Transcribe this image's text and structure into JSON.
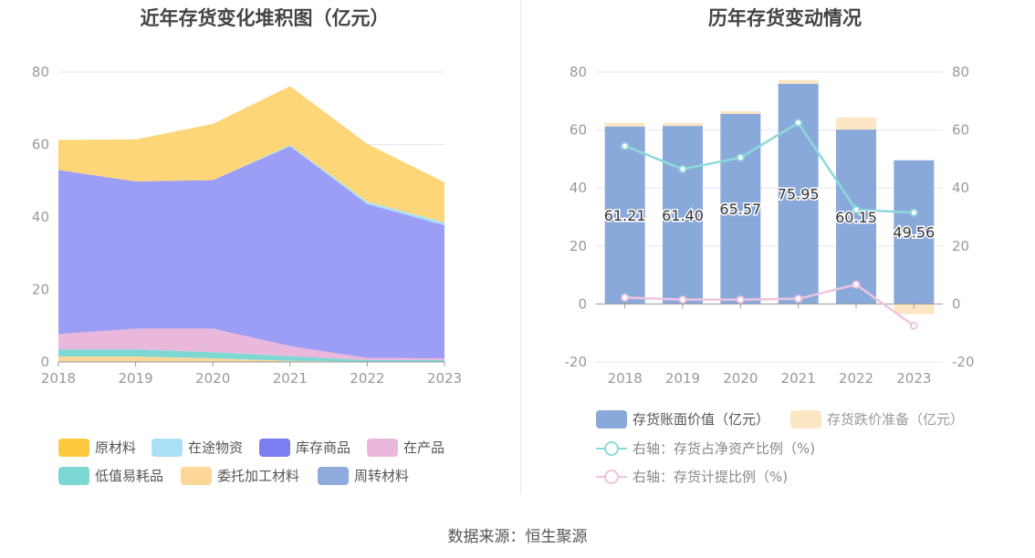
{
  "left_title": "近年存货变化堆积图（亿元）",
  "right_title": "历年存货变动情况",
  "source": "数据来源：恒生聚源",
  "left_legend": [
    {
      "label": "原材料",
      "color": "#fcc93f"
    },
    {
      "label": "在途物资",
      "color": "#a9dff7"
    },
    {
      "label": "库存商品",
      "color": "#7b7ef0"
    },
    {
      "label": "在产品",
      "color": "#e9b8dc"
    },
    {
      "label": "低值易耗品",
      "color": "#7dd8d4"
    },
    {
      "label": "委托加工材料",
      "color": "#fdd699"
    },
    {
      "label": "周转材料",
      "color": "#8faadd"
    }
  ],
  "right_legend": [
    {
      "label": "存货账面价值（亿元）",
      "color": "#8aa9db",
      "kind": "bar"
    },
    {
      "label": "存货跌价准备（亿元）",
      "color": "#fde6c3",
      "kind": "bar"
    },
    {
      "label": "右轴：存货占净资产比例（%)",
      "color": "#8ed9d9",
      "kind": "line"
    },
    {
      "label": "右轴：存货计提比例（%)",
      "color": "#efc4de",
      "kind": "line"
    }
  ],
  "chart_data": [
    {
      "type": "area",
      "title": "近年存货变化堆积图（亿元）",
      "categories": [
        "2018",
        "2019",
        "2020",
        "2021",
        "2022",
        "2023"
      ],
      "ylim": [
        0,
        80
      ],
      "yticks": [
        0,
        20,
        40,
        60,
        80
      ],
      "grid": true,
      "legend_position": "bottom",
      "stack_order_bottom_to_top": [
        "委托加工材料",
        "低值易耗品",
        "在产品",
        "库存商品",
        "在途物资",
        "原材料"
      ],
      "series": [
        {
          "name": "委托加工材料",
          "color": "#fdd699",
          "values": [
            1.5,
            1.5,
            1.0,
            0.3,
            0.1,
            0.1
          ]
        },
        {
          "name": "低值易耗品",
          "color": "#7dd8d4",
          "values": [
            2.0,
            2.0,
            1.7,
            1.3,
            0.4,
            0.4
          ]
        },
        {
          "name": "在产品",
          "color": "#e9b8dc",
          "values": [
            4.2,
            5.7,
            6.5,
            2.8,
            0.6,
            0.5
          ]
        },
        {
          "name": "库存商品",
          "color": "#9c9df5",
          "values": [
            45.3,
            40.6,
            41.0,
            55.1,
            42.5,
            36.7
          ]
        },
        {
          "name": "在途物资",
          "color": "#a9dff7",
          "values": [
            0.0,
            0.0,
            0.0,
            0.3,
            0.6,
            0.8
          ]
        },
        {
          "name": "原材料",
          "color": "#fdd679",
          "values": [
            8.3,
            11.6,
            15.5,
            16.3,
            16.0,
            11.1
          ]
        }
      ]
    },
    {
      "type": "bar",
      "title": "历年存货变动情况",
      "categories": [
        "2018",
        "2019",
        "2020",
        "2021",
        "2022",
        "2023"
      ],
      "ylim": [
        -20,
        80
      ],
      "yticks": [
        -20,
        0,
        20,
        40,
        60,
        80
      ],
      "y2lim": [
        -20,
        80
      ],
      "y2ticks": [
        -20,
        0,
        20,
        40,
        60,
        80
      ],
      "grid": true,
      "legend_position": "bottom",
      "series": [
        {
          "name": "存货账面价值（亿元）",
          "kind": "bar",
          "color": "#8aa9db",
          "values": [
            61.21,
            61.4,
            65.57,
            75.95,
            60.15,
            49.56
          ],
          "labels": [
            "61.21",
            "61.40",
            "65.57",
            "75.95",
            "60.15",
            "49.56"
          ]
        },
        {
          "name": "存货跌价准备（亿元）",
          "kind": "bar",
          "color": "#fde6c3",
          "values": [
            1.3,
            1.0,
            0.9,
            1.3,
            4.2,
            -3.5
          ]
        },
        {
          "name": "右轴：存货占净资产比例（%)",
          "kind": "line",
          "axis": "right",
          "color": "#8ed9d9",
          "values": [
            54.5,
            46.5,
            50.5,
            62.5,
            32.5,
            31.5
          ]
        },
        {
          "name": "右轴：存货计提比例（%)",
          "kind": "line",
          "axis": "right",
          "color": "#efc4de",
          "values": [
            2.2,
            1.5,
            1.5,
            1.8,
            6.7,
            -7.5
          ]
        }
      ]
    }
  ]
}
